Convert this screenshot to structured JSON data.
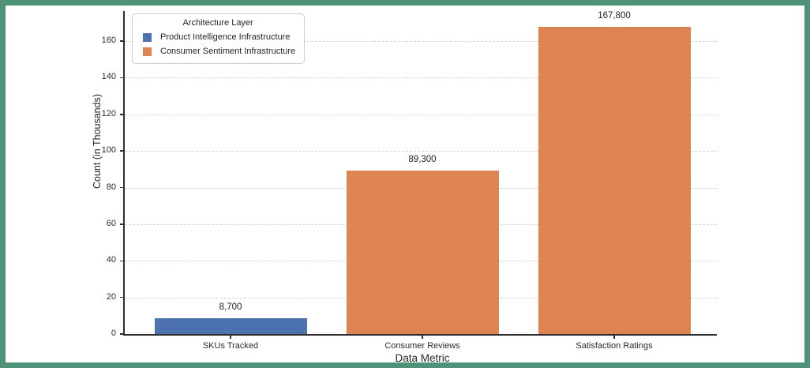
{
  "window": {
    "border_color": "#4E9377",
    "background": "#ffffff"
  },
  "chart_data": {
    "type": "bar",
    "title": "",
    "xlabel": "Data Metric",
    "ylabel": "Count (in Thousands)",
    "categories": [
      "SKUs Tracked",
      "Consumer Reviews",
      "Satisfaction Ratings"
    ],
    "values_thousands": [
      8.7,
      89.3,
      167.8
    ],
    "bar_value_labels": [
      "8,700",
      "89,300",
      "167,800"
    ],
    "bar_series": [
      "Product Intelligence Infrastructure",
      "Consumer Sentiment Infrastructure",
      "Consumer Sentiment Infrastructure"
    ],
    "bar_colors": [
      "#4C72B0",
      "#DD8452",
      "#DD8452"
    ],
    "yticks": [
      0,
      20,
      40,
      60,
      80,
      100,
      120,
      140,
      160
    ],
    "ylim": [
      0,
      176.8
    ],
    "grid": {
      "axis": "y",
      "style": "dashed",
      "color": "#d4d4d4"
    },
    "legend": {
      "title": "Architecture Layer",
      "position": "upper-left",
      "items": [
        {
          "label": "Product Intelligence Infrastructure",
          "color": "#4C72B0"
        },
        {
          "label": "Consumer Sentiment Infrastructure",
          "color": "#DD8452"
        }
      ]
    }
  }
}
